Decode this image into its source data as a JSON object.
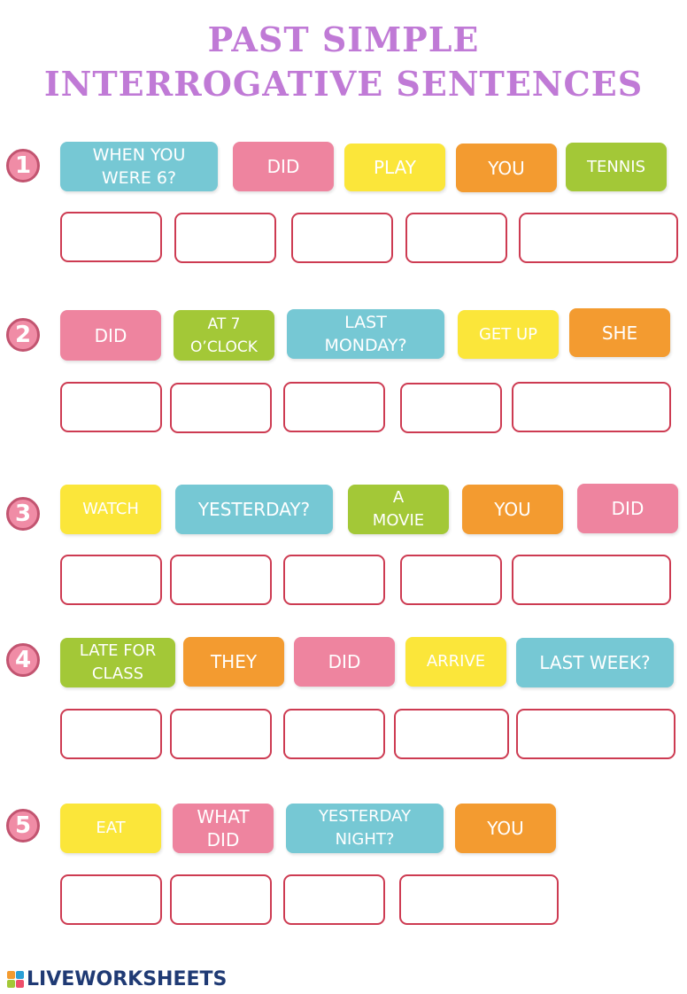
{
  "title": {
    "line1": "PAST SIMPLE",
    "line2": "INTERROGATIVE SENTENCES"
  },
  "questions": [
    {
      "number": "1",
      "tiles": [
        {
          "text": "WHEN YOU\nWERE 6?",
          "color": "blue"
        },
        {
          "text": "DID",
          "color": "pink"
        },
        {
          "text": "PLAY",
          "color": "yellow"
        },
        {
          "text": "YOU",
          "color": "orange"
        },
        {
          "text": "TENNIS",
          "color": "green"
        }
      ]
    },
    {
      "number": "2",
      "tiles": [
        {
          "text": "DID",
          "color": "pink"
        },
        {
          "text": "AT 7\nO’CLOCK",
          "color": "green"
        },
        {
          "text": "LAST\nMONDAY?",
          "color": "blue"
        },
        {
          "text": "GET UP",
          "color": "yellow"
        },
        {
          "text": "SHE",
          "color": "orange"
        }
      ]
    },
    {
      "number": "3",
      "tiles": [
        {
          "text": "WATCH",
          "color": "yellow"
        },
        {
          "text": "YESTERDAY?",
          "color": "blue"
        },
        {
          "text": "A\nMOVIE",
          "color": "green"
        },
        {
          "text": "YOU",
          "color": "orange"
        },
        {
          "text": "DID",
          "color": "pink"
        }
      ]
    },
    {
      "number": "4",
      "tiles": [
        {
          "text": "LATE FOR\nCLASS",
          "color": "green"
        },
        {
          "text": "THEY",
          "color": "orange"
        },
        {
          "text": "DID",
          "color": "pink"
        },
        {
          "text": "ARRIVE",
          "color": "yellow"
        },
        {
          "text": "LAST WEEK?",
          "color": "blue"
        }
      ]
    },
    {
      "number": "5",
      "tiles": [
        {
          "text": "EAT",
          "color": "yellow"
        },
        {
          "text": "WHAT\nDID",
          "color": "pink"
        },
        {
          "text": "YESTERDAY\nNIGHT?",
          "color": "blue"
        },
        {
          "text": "YOU",
          "color": "orange"
        }
      ]
    }
  ],
  "footer": {
    "brand": "LIVEWORKSHEETS"
  },
  "colors": {
    "title": "#c07ad6",
    "blue": "#76c8d4",
    "pink": "#ee849f",
    "yellow": "#fbe63a",
    "orange": "#f39b30",
    "green": "#a3c837",
    "slot_border": "#cd3b52"
  }
}
